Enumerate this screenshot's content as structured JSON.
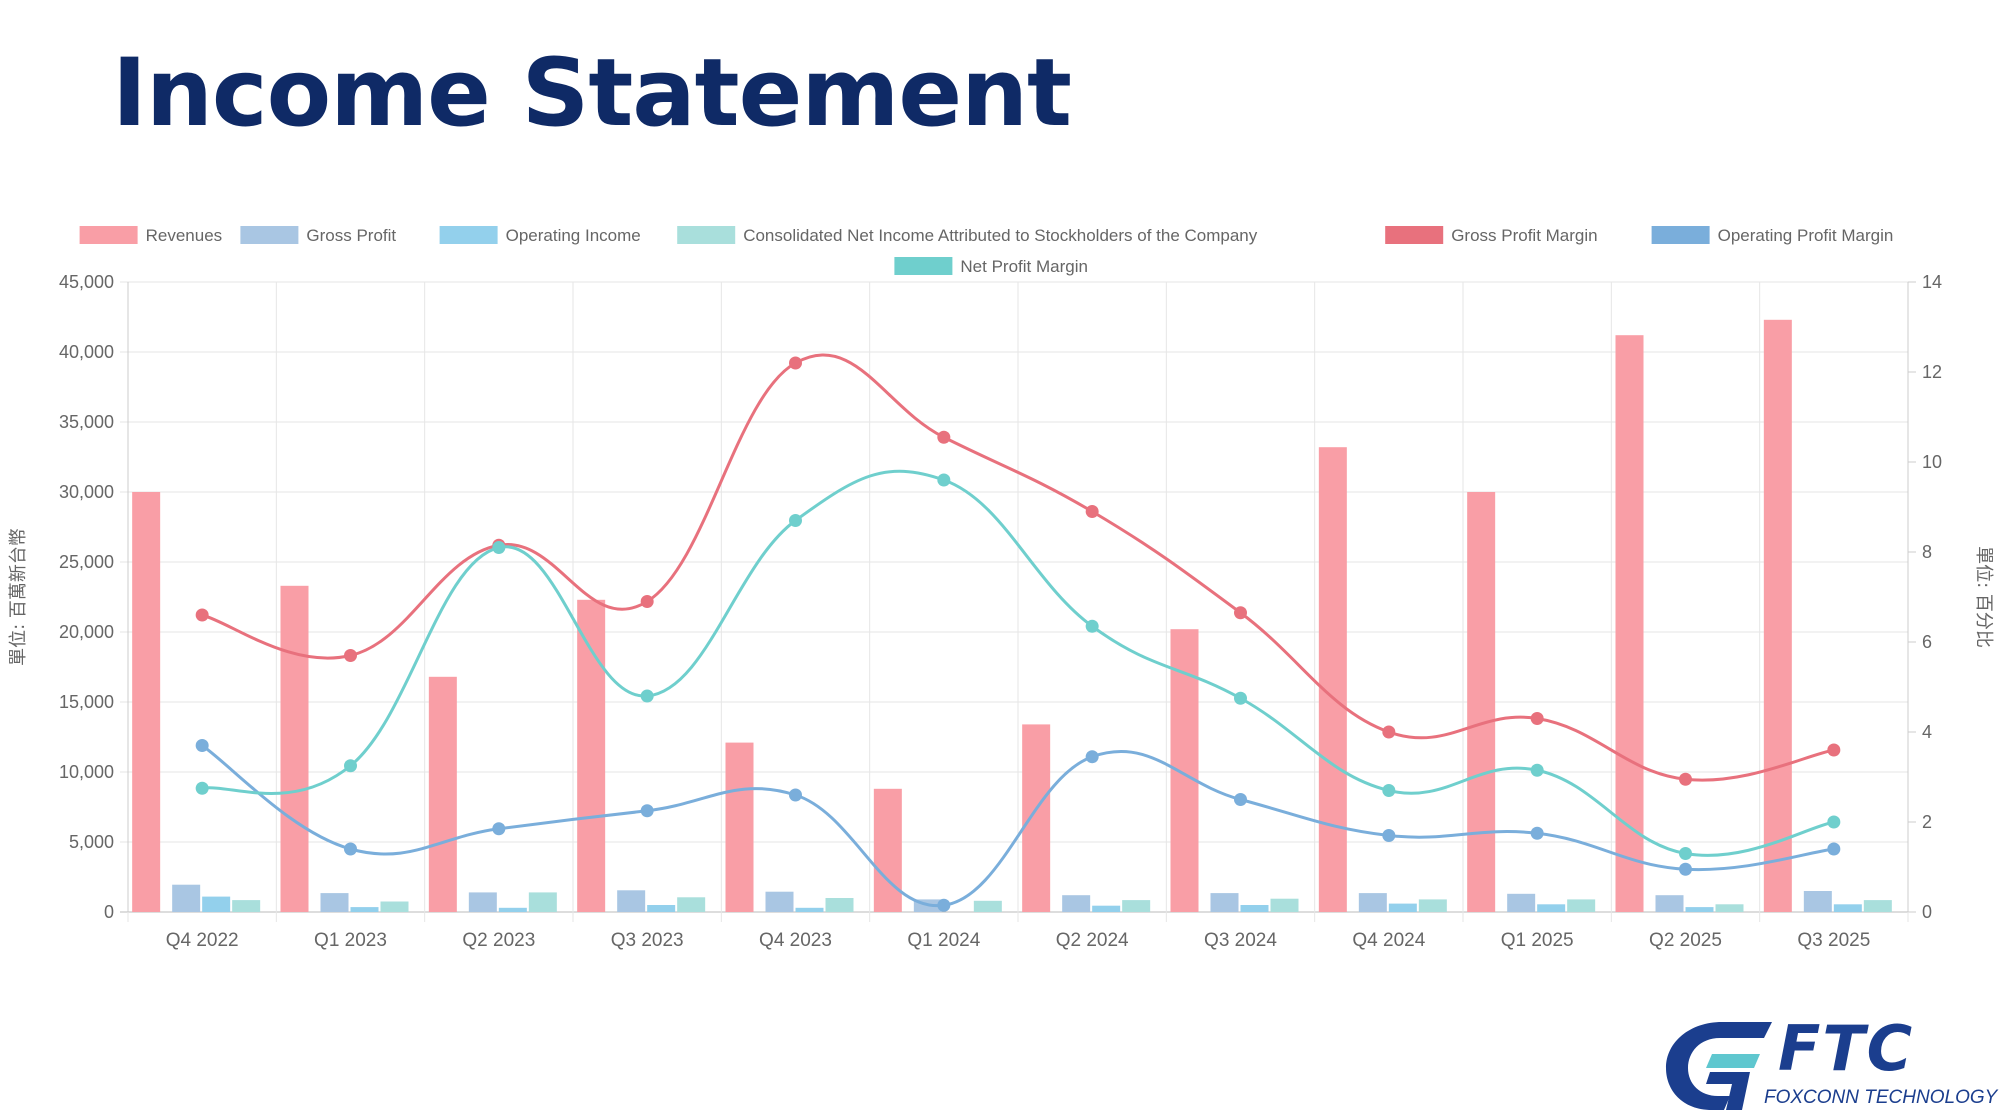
{
  "page": {
    "title": "Income Statement"
  },
  "logo": {
    "text": "FTC",
    "subtext": "FOXCONN TECHNOLOGY CORP."
  },
  "colors": {
    "title": "#0f2a66",
    "revenues": "#f99ea6",
    "gross_profit": "#a9c6e3",
    "operating_income": "#93d0ec",
    "net_income": "#a9dfdc",
    "gross_profit_margin": "#e8717d",
    "operating_profit_margin": "#7aaedb",
    "net_profit_margin": "#6fcfcd",
    "logo": "#1b3e8e"
  },
  "chart_data": {
    "type": "bar",
    "title": "",
    "categories": [
      "Q4 2022",
      "Q1 2023",
      "Q2 2023",
      "Q3 2023",
      "Q4 2023",
      "Q1 2024",
      "Q2 2024",
      "Q3 2024",
      "Q4 2024",
      "Q1 2025",
      "Q2 2025",
      "Q3 2025"
    ],
    "ylabel": "單位: 百萬新台幣",
    "y2label": "單位: 百分比",
    "ylim": [
      0,
      45000
    ],
    "y2lim": [
      0,
      14
    ],
    "yticks": [
      "0",
      "5,000",
      "10,000",
      "15,000",
      "20,000",
      "25,000",
      "30,000",
      "35,000",
      "40,000",
      "45,000"
    ],
    "y2ticks": [
      "0",
      "2",
      "4",
      "6",
      "8",
      "10",
      "12",
      "14"
    ],
    "grid": true,
    "legend_position": "top",
    "series": [
      {
        "name": "Revenues",
        "type": "bar",
        "axis": "left",
        "color": "#f99ea6",
        "values": [
          30000,
          23300,
          16800,
          22300,
          12100,
          8800,
          13400,
          20200,
          33200,
          30000,
          41200,
          42300
        ]
      },
      {
        "name": "Gross Profit",
        "type": "bar",
        "axis": "left",
        "color": "#a9c6e3",
        "values": [
          1950,
          1350,
          1400,
          1550,
          1450,
          900,
          1200,
          1350,
          1350,
          1300,
          1200,
          1500
        ]
      },
      {
        "name": "Operating Income",
        "type": "bar",
        "axis": "left",
        "color": "#93d0ec",
        "values": [
          1100,
          350,
          300,
          500,
          300,
          0,
          450,
          500,
          600,
          550,
          350,
          550
        ]
      },
      {
        "name": "Consolidated Net Income Attributed to Stockholders of the Company",
        "type": "bar",
        "axis": "left",
        "color": "#a9dfdc",
        "values": [
          850,
          750,
          1400,
          1050,
          1000,
          800,
          850,
          950,
          900,
          900,
          550,
          850
        ]
      },
      {
        "name": "Gross Profit Margin",
        "type": "line",
        "axis": "right",
        "color": "#e8717d",
        "values": [
          6.6,
          5.7,
          8.15,
          6.9,
          12.2,
          10.55,
          8.9,
          6.65,
          4.0,
          4.3,
          2.95,
          3.6
        ]
      },
      {
        "name": "Operating Profit Margin",
        "type": "line",
        "axis": "right",
        "color": "#7aaedb",
        "values": [
          3.7,
          1.4,
          1.85,
          2.25,
          2.6,
          0.15,
          3.45,
          2.5,
          1.7,
          1.75,
          0.95,
          1.4
        ]
      },
      {
        "name": "Net Profit Margin",
        "type": "line",
        "axis": "right",
        "color": "#6fcfcd",
        "values": [
          2.75,
          3.25,
          8.1,
          4.8,
          8.7,
          9.6,
          6.35,
          4.75,
          2.7,
          3.15,
          1.3,
          2.0
        ]
      }
    ]
  }
}
